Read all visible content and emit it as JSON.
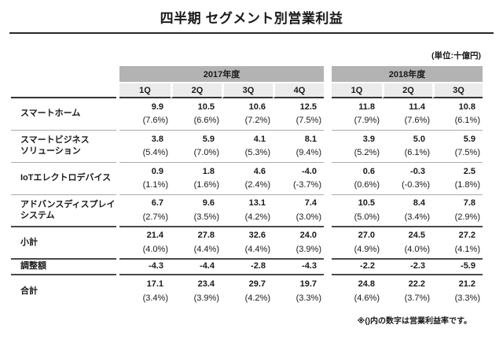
{
  "page": {
    "title": "四半期 セグメント別営業利益",
    "unit_note": "(単位:十億円)",
    "footnote": "※()内の数字は営業利益率です。"
  },
  "colors": {
    "year_header_bg": "#b3b3b3",
    "quarter_header_bg": "#ebebeb",
    "text": "#1a1a1a",
    "separator_light": "#aaaaaa",
    "separator_dark": "#4a4a4a"
  },
  "table": {
    "year_groups": [
      {
        "label": "2017年度",
        "quarters": [
          "1Q",
          "2Q",
          "3Q",
          "4Q"
        ]
      },
      {
        "label": "2018年度",
        "quarters": [
          "1Q",
          "2Q",
          "3Q"
        ]
      }
    ],
    "rows": [
      {
        "kind": "segment",
        "label": "スマートホーム",
        "values": [
          "9.9",
          "10.5",
          "10.6",
          "12.5",
          "11.8",
          "11.4",
          "10.8"
        ],
        "margins": [
          "(7.6%)",
          "(6.6%)",
          "(7.2%)",
          "(7.5%)",
          "(7.9%)",
          "(7.6%)",
          "(6.1%)"
        ]
      },
      {
        "kind": "segment",
        "label": "スマートビジネス\nソリューション",
        "values": [
          "3.8",
          "5.9",
          "4.1",
          "8.1",
          "3.9",
          "5.0",
          "5.9"
        ],
        "margins": [
          "(5.4%)",
          "(7.0%)",
          "(5.3%)",
          "(9.4%)",
          "(5.2%)",
          "(6.1%)",
          "(7.5%)"
        ]
      },
      {
        "kind": "segment",
        "label": "IoTエレクトロデバイス",
        "values": [
          "0.9",
          "1.8",
          "4.6",
          "-4.0",
          "0.6",
          "-0.3",
          "2.5"
        ],
        "margins": [
          "(1.1%)",
          "(1.6%)",
          "(2.4%)",
          "(-3.7%)",
          "(0.6%)",
          "(-0.3%)",
          "(1.8%)"
        ]
      },
      {
        "kind": "segment",
        "label": "アドバンスディスプレイ\nシステム",
        "values": [
          "6.7",
          "9.6",
          "13.1",
          "7.4",
          "10.5",
          "8.4",
          "7.8"
        ],
        "margins": [
          "(2.7%)",
          "(3.5%)",
          "(4.2%)",
          "(3.0%)",
          "(5.0%)",
          "(3.4%)",
          "(2.9%)"
        ]
      },
      {
        "kind": "subtotal",
        "label": "小計",
        "values": [
          "21.4",
          "27.8",
          "32.6",
          "24.0",
          "27.0",
          "24.5",
          "27.2"
        ],
        "margins": [
          "(4.0%)",
          "(4.4%)",
          "(4.4%)",
          "(3.9%)",
          "(4.9%)",
          "(4.0%)",
          "(4.1%)"
        ]
      },
      {
        "kind": "adjustments",
        "label": "調整額",
        "values": [
          "-4.3",
          "-4.4",
          "-2.8",
          "-4.3",
          "-2.2",
          "-2.3",
          "-5.9"
        ],
        "margins": null
      },
      {
        "kind": "total",
        "label": "合計",
        "values": [
          "17.1",
          "23.4",
          "29.7",
          "19.7",
          "24.8",
          "22.2",
          "21.2"
        ],
        "margins": [
          "(3.4%)",
          "(3.9%)",
          "(4.2%)",
          "(3.3%)",
          "(4.6%)",
          "(3.7%)",
          "(3.3%)"
        ]
      }
    ]
  }
}
